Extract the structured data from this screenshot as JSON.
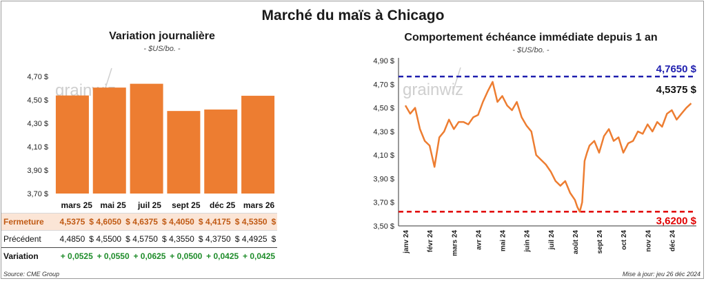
{
  "title": "Marché du maïs à Chicago",
  "left": {
    "subtitle": "Variation journalière",
    "unit": "- $US/bo. -",
    "watermark": "grainwiz",
    "bar_color": "#ED7D31",
    "table": {
      "headers": [
        "mars 25",
        "mai 25",
        "juil 25",
        "sept 25",
        "déc 25",
        "mars 26"
      ],
      "fermeture_label": "Fermeture",
      "fermeture": [
        "4,5375",
        "4,6050",
        "4,6375",
        "4,4050",
        "4,4175",
        "4,5350"
      ],
      "precedent_label": "Précédent",
      "precedent": [
        "4,4850",
        "4,5500",
        "4,5750",
        "4,3550",
        "4,3750",
        "4,4925"
      ],
      "variation_label": "Variation",
      "variation": [
        "+ 0,0525",
        "+ 0,0550",
        "+ 0,0625",
        "+ 0,0500",
        "+ 0,0425",
        "+ 0,0425"
      ],
      "currency": "$"
    }
  },
  "right": {
    "subtitle": "Comportement  échéance immédiate depuis 1 an",
    "unit": "- $US/bo. -",
    "watermark": "grainwiz",
    "line_color": "#ED7D31",
    "high_color": "#1F1FAF",
    "low_color": "#E00000",
    "high_label": "4,7650 $",
    "low_label": "3,6200 $",
    "last_label": "4,5375 $"
  },
  "footer": {
    "source": "Source: CME Group",
    "updated": "Mise à jour: jeu 26 déc 2024"
  },
  "chart_data": [
    {
      "type": "bar",
      "title": "Variation journalière",
      "categories": [
        "mars 25",
        "mai 25",
        "juil 25",
        "sept 25",
        "déc 25",
        "mars 26"
      ],
      "values": [
        4.5375,
        4.605,
        4.6375,
        4.405,
        4.4175,
        4.535
      ],
      "ylim": [
        3.7,
        4.7
      ],
      "yticks": [
        3.7,
        3.9,
        4.1,
        4.3,
        4.5,
        4.7
      ],
      "ytick_labels": [
        "3,70 $",
        "3,90 $",
        "4,10 $",
        "4,30 $",
        "4,50 $",
        "4,70 $"
      ]
    },
    {
      "type": "line",
      "title": "Comportement  échéance immédiate depuis 1 an",
      "x_labels": [
        "janv 24",
        "févr 24",
        "mars 24",
        "avr 24",
        "mai 24",
        "juin 24",
        "juil 24",
        "août 24",
        "sept 24",
        "oct 24",
        "nov 24",
        "déc 24"
      ],
      "ylim": [
        3.5,
        4.9
      ],
      "yticks": [
        3.5,
        3.7,
        3.9,
        4.1,
        4.3,
        4.5,
        4.7,
        4.9
      ],
      "ytick_labels": [
        "3,50 $",
        "3,70 $",
        "3,90 $",
        "4,10 $",
        "4,30 $",
        "4,50 $",
        "4,70 $",
        "4,90 $"
      ],
      "x_months": [
        0,
        0.2,
        0.4,
        0.6,
        0.8,
        1,
        1.2,
        1.4,
        1.6,
        1.8,
        2,
        2.2,
        2.4,
        2.6,
        2.8,
        3,
        3.2,
        3.4,
        3.6,
        3.8,
        4,
        4.2,
        4.4,
        4.6,
        4.8,
        5,
        5.2,
        5.4,
        5.6,
        5.8,
        6,
        6.2,
        6.4,
        6.6,
        6.8,
        7,
        7.1,
        7.2,
        7.3,
        7.4,
        7.5,
        7.6,
        7.8,
        8,
        8.2,
        8.4,
        8.6,
        8.8,
        9,
        9.2,
        9.4,
        9.6,
        9.8,
        10,
        10.2,
        10.4,
        10.6,
        10.8,
        11,
        11.2,
        11.4,
        11.6,
        11.8
      ],
      "values": [
        4.52,
        4.45,
        4.5,
        4.32,
        4.22,
        4.18,
        4.0,
        4.25,
        4.3,
        4.4,
        4.32,
        4.38,
        4.38,
        4.36,
        4.42,
        4.44,
        4.55,
        4.64,
        4.72,
        4.55,
        4.6,
        4.52,
        4.48,
        4.55,
        4.42,
        4.35,
        4.3,
        4.1,
        4.06,
        4.02,
        3.96,
        3.88,
        3.84,
        3.88,
        3.78,
        3.72,
        3.66,
        3.62,
        3.7,
        4.05,
        4.12,
        4.18,
        4.22,
        4.12,
        4.26,
        4.32,
        4.22,
        4.25,
        4.12,
        4.2,
        4.22,
        4.3,
        4.28,
        4.36,
        4.3,
        4.38,
        4.34,
        4.45,
        4.48,
        4.4,
        4.45,
        4.5,
        4.5375
      ],
      "high": 4.765,
      "low": 3.62,
      "last": 4.5375
    }
  ]
}
